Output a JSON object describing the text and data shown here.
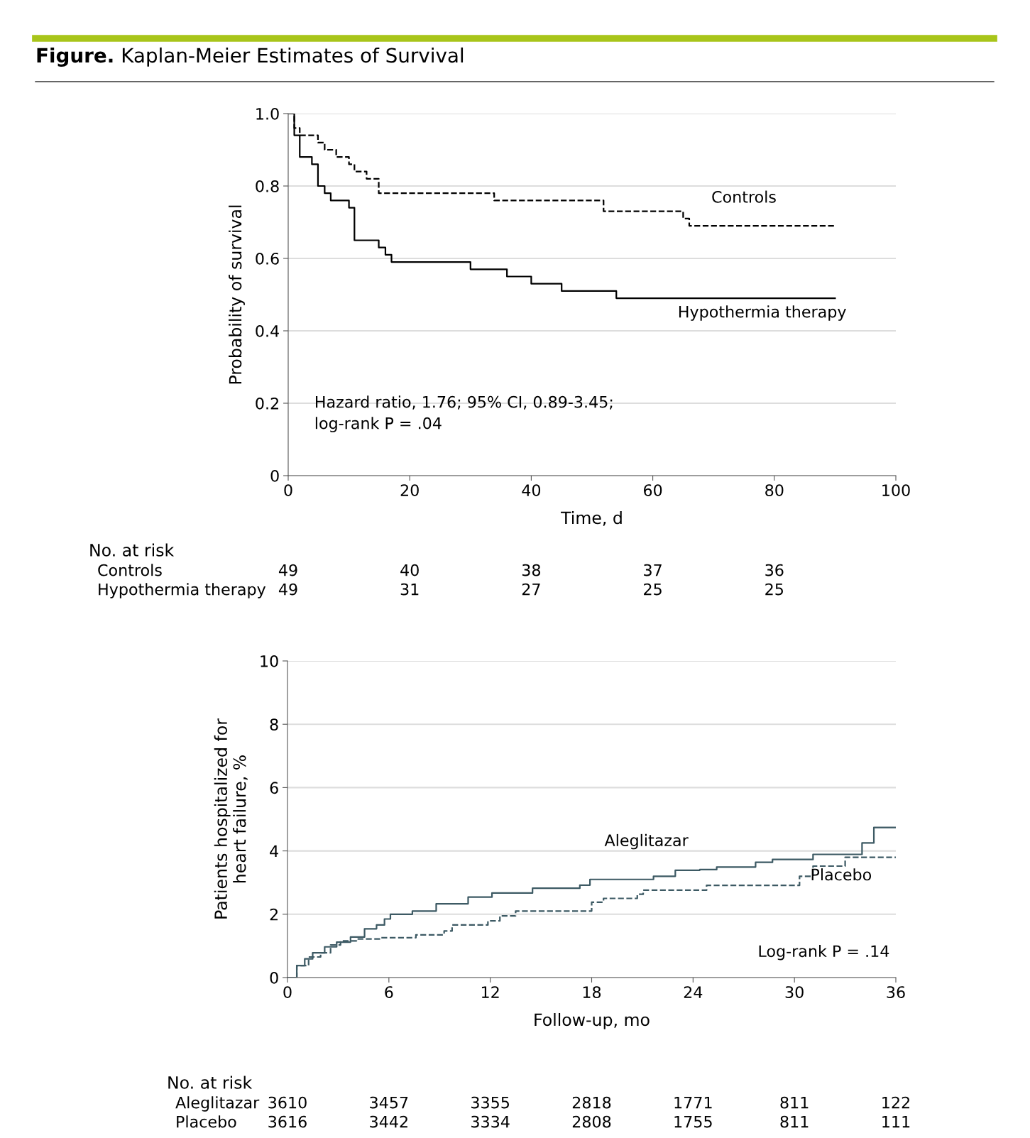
{
  "chart_data": [
    {
      "type": "step",
      "title": "Figure. Kaplan-Meier Estimates of Survival",
      "xlabel": "Time, d",
      "ylabel": "Probability of survival",
      "xlim": [
        0,
        100
      ],
      "xticks": [
        0,
        20,
        40,
        60,
        80,
        100
      ],
      "ylim": [
        0,
        1.0
      ],
      "yticks": [
        0,
        0.2,
        0.4,
        0.6,
        0.8,
        {
          "value": 1.0,
          "label": "1.0"
        }
      ],
      "grid": "y",
      "legend": false,
      "series": [
        {
          "name": "Controls",
          "color": "#000000",
          "line_style": "dashed",
          "x": [
            0,
            1,
            1.9,
            4.9,
            6,
            7.9,
            10,
            10.9,
            12.9,
            14.9,
            33.9,
            51.9,
            65,
            66,
            90
          ],
          "values": [
            1.0,
            0.96,
            0.94,
            0.92,
            0.9,
            0.88,
            0.86,
            0.84,
            0.82,
            0.78,
            0.76,
            0.73,
            0.71,
            0.69,
            0.69
          ]
        },
        {
          "name": "Hypothermia therapy",
          "color": "#000000",
          "line_style": "solid",
          "x": [
            0,
            1,
            1.9,
            3.9,
            4.9,
            6,
            7,
            10,
            10.9,
            14.9,
            16,
            17,
            30,
            36,
            40,
            45,
            54,
            90
          ],
          "values": [
            1.0,
            0.94,
            0.88,
            0.86,
            0.8,
            0.78,
            0.76,
            0.74,
            0.65,
            0.63,
            0.61,
            0.59,
            0.57,
            0.55,
            0.53,
            0.51,
            0.49,
            0.49
          ]
        }
      ],
      "annotations": [
        "Hazard ratio, 1.76; 95% CI, 0.89-3.45;\nlog-rank P = .04",
        "No. at risk",
        "Controls",
        "Hypothermia therapy",
        "49",
        "40",
        "38",
        "37",
        "36",
        "49",
        "31",
        "27",
        "25",
        "25"
      ]
    },
    {
      "type": "step",
      "xlabel": "Follow-up, mo",
      "ylabel": "Patients hospitalized for\nheart failure, %",
      "xlim": [
        0,
        36
      ],
      "xticks": [
        0,
        6,
        12,
        18,
        24,
        30,
        36
      ],
      "ylim": [
        0,
        10
      ],
      "yticks": [
        0,
        2,
        4,
        6,
        8,
        10
      ],
      "grid": "y",
      "legend": false,
      "series": [
        {
          "name": "Aleglitazar",
          "color": "#3d5a64",
          "line_style": "solid",
          "x": [
            0,
            0.55,
            1.02,
            1.49,
            2.2,
            2.91,
            3.73,
            4.56,
            5.27,
            5.74,
            6.09,
            7.39,
            8.8,
            10.69,
            12.1,
            14.5,
            17.3,
            17.9,
            21.66,
            22.95,
            24.4,
            25.4,
            27.7,
            28.7,
            31.1,
            34.0,
            34.7,
            36
          ],
          "values": [
            0,
            0.38,
            0.59,
            0.78,
            0.97,
            1.12,
            1.28,
            1.54,
            1.66,
            1.85,
            2.0,
            2.1,
            2.33,
            2.54,
            2.67,
            2.82,
            2.92,
            3.1,
            3.2,
            3.39,
            3.41,
            3.49,
            3.64,
            3.73,
            3.89,
            4.25,
            4.74,
            4.74
          ]
        },
        {
          "name": "Placebo",
          "color": "#3d5a64",
          "line_style": "dashed",
          "x": [
            0,
            0.55,
            1.25,
            1.96,
            2.55,
            3.14,
            4.08,
            5.5,
            7.6,
            9.27,
            9.74,
            11.86,
            12.57,
            13.5,
            18,
            18.7,
            20.7,
            21.05,
            24.8,
            30.3,
            31.1,
            33.0,
            36
          ],
          "values": [
            0,
            0.38,
            0.65,
            0.78,
            1.03,
            1.16,
            1.22,
            1.26,
            1.35,
            1.47,
            1.66,
            1.79,
            1.95,
            2.1,
            2.38,
            2.5,
            2.63,
            2.76,
            2.91,
            3.2,
            3.52,
            3.8,
            3.8
          ]
        }
      ],
      "annotations": [
        "Log-rank P = .14",
        "No. at risk",
        "Aleglitazar",
        "Placebo",
        "3610",
        "3457",
        "3355",
        "2818",
        "1771",
        "811",
        "122",
        "3616",
        "3442",
        "3334",
        "2808",
        "1755",
        "811",
        "111"
      ]
    }
  ]
}
